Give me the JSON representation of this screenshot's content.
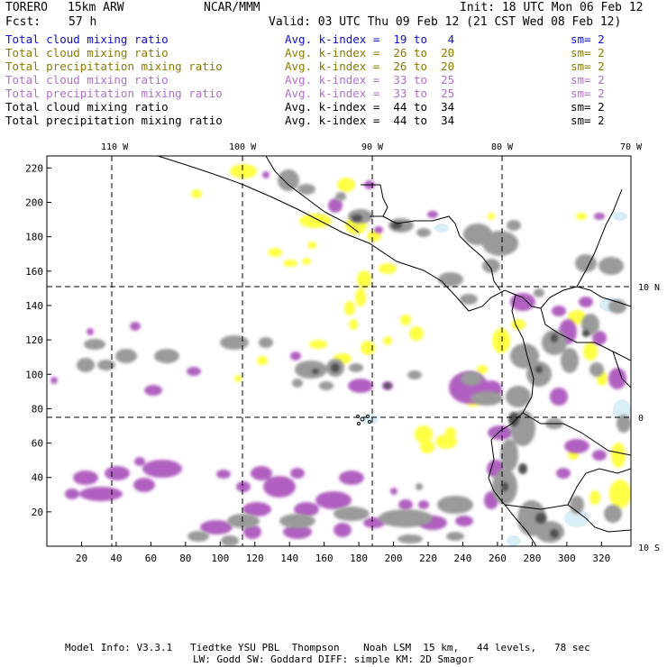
{
  "header": {
    "model": "TORERO",
    "resolution": "15km ARW",
    "center": "NCAR/MMM",
    "init": "Init: 18 UTC Mon 06 Feb 12",
    "fcst_label": "Fcst:",
    "fcst_value": "57 h",
    "valid": "Valid: 03 UTC Thu 09 Feb 12 (21 CST Wed 08 Feb 12)"
  },
  "legend": [
    {
      "name": "Total cloud mixing ratio",
      "avg": "Avg. k-index =  19 to   4",
      "sm": "sm= 2",
      "color": "#1010c8"
    },
    {
      "name": "Total cloud mixing ratio",
      "avg": "Avg. k-index =  26 to  20",
      "sm": "sm= 2",
      "color": "#8a7a00"
    },
    {
      "name": "Total precipitation mixing ratio",
      "avg": "Avg. k-index =  26 to  20",
      "sm": "sm= 2",
      "color": "#8a7a00"
    },
    {
      "name": "Total cloud mixing ratio",
      "avg": "Avg. k-index =  33 to  25",
      "sm": "sm= 2",
      "color": "#b070c8"
    },
    {
      "name": "Total precipitation mixing ratio",
      "avg": "Avg. k-index =  33 to  25",
      "sm": "sm= 2",
      "color": "#b070c8"
    },
    {
      "name": "Total cloud mixing ratio",
      "avg": "Avg. k-index =  44 to  34",
      "sm": "sm= 2",
      "color": "#000000"
    },
    {
      "name": "Total precipitation mixing ratio",
      "avg": "Avg. k-index =  44 to  34",
      "sm": "sm= 2",
      "color": "#000000"
    }
  ],
  "map": {
    "lon_labels": [
      "110 W",
      "100 W",
      "90 W",
      "80 W",
      "70 W"
    ],
    "lat_labels": [
      "10 N",
      "0",
      "10 S"
    ],
    "y_grid_labels": [
      "220",
      "200",
      "180",
      "160",
      "140",
      "120",
      "100",
      "80",
      "60",
      "40",
      "20"
    ],
    "x_grid_labels": [
      "20",
      "40",
      "60",
      "80",
      "100",
      "120",
      "140",
      "160",
      "180",
      "200",
      "220",
      "240",
      "260",
      "280",
      "300",
      "320"
    ],
    "colors": {
      "cloud_low": "#d8eef8",
      "cloud_mid": "#ffff44",
      "precip_mid": "#b060c0",
      "cloud_high": "#9a9a9a",
      "cloud_core": "#505050",
      "coast": "#000000",
      "grid": "#000000"
    }
  },
  "footer": {
    "line1": "Model Info: V3.3.1   Tiedtke YSU PBL  Thompson    Noah LSM  15 km,   44 levels,   78 sec",
    "line2": "LW: Godd SW: Goddard DIFF: simple KM: 2D Smagor"
  }
}
